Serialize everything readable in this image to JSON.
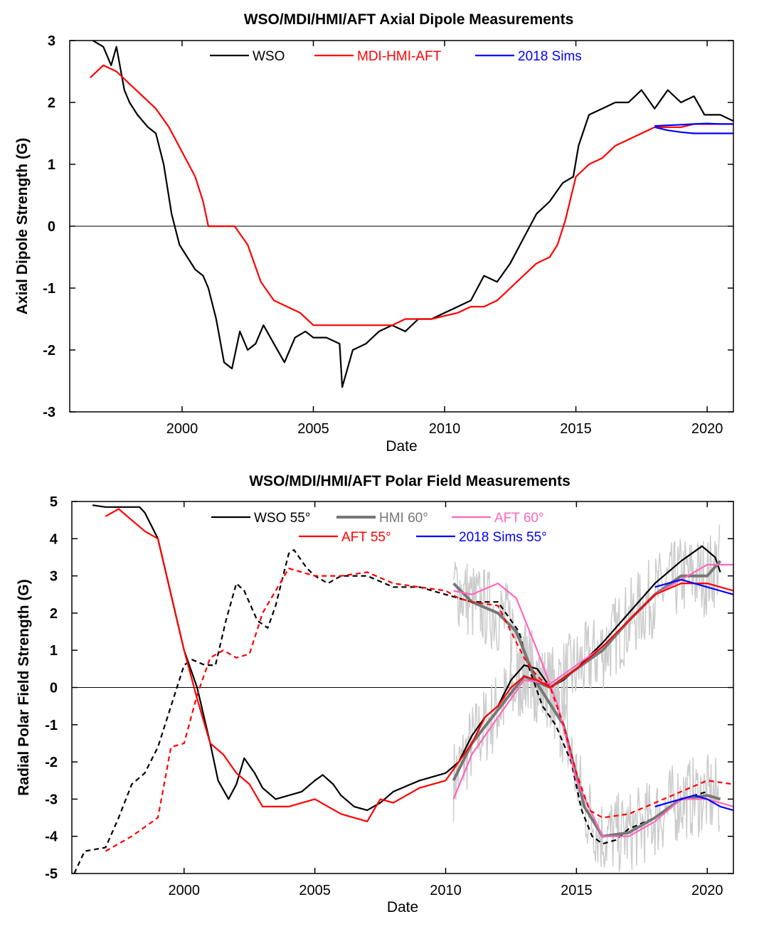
{
  "chart_data": [
    {
      "type": "line",
      "title": "WSO/MDI/HMI/AFT Axial Dipole Measurements",
      "xlabel": "Date",
      "ylabel": "Axial Dipole Strength (G)",
      "xlim": [
        1995.72,
        2021.0
      ],
      "ylim": [
        -3,
        3
      ],
      "xticks": [
        2000,
        2005,
        2010,
        2015,
        2020
      ],
      "yticks": [
        -3,
        -2,
        -1,
        0,
        1,
        2,
        3
      ],
      "legend": "top",
      "series": [
        {
          "name": "WSO",
          "color": "#000000",
          "legend": true,
          "x": [
            1996.6,
            1997.0,
            1997.3,
            1997.5,
            1997.8,
            1998.0,
            1998.3,
            1998.7,
            1999.0,
            1999.3,
            1999.6,
            1999.9,
            2000.2,
            2000.5,
            2000.8,
            2001.0,
            2001.3,
            2001.6,
            2001.9,
            2002.2,
            2002.5,
            2002.8,
            2003.1,
            2003.5,
            2003.9,
            2004.3,
            2004.7,
            2005.0,
            2005.5,
            2006.0,
            2006.1,
            2006.5,
            2007.0,
            2007.5,
            2008.0,
            2008.5,
            2009.0,
            2009.5,
            2010.0,
            2010.5,
            2011.0,
            2011.5,
            2012.0,
            2012.5,
            2013.0,
            2013.5,
            2014.0,
            2014.5,
            2014.9,
            2015.1,
            2015.5,
            2016.0,
            2016.5,
            2017.0,
            2017.5,
            2018.0,
            2018.5,
            2019.0,
            2019.5,
            2019.9,
            2020.5,
            2021.0
          ],
          "y": [
            3.0,
            2.9,
            2.6,
            2.9,
            2.2,
            2.0,
            1.8,
            1.6,
            1.5,
            1.0,
            0.2,
            -0.3,
            -0.5,
            -0.7,
            -0.8,
            -1.0,
            -1.5,
            -2.2,
            -2.3,
            -1.7,
            -2.0,
            -1.9,
            -1.6,
            -1.9,
            -2.2,
            -1.8,
            -1.7,
            -1.8,
            -1.8,
            -1.9,
            -2.6,
            -2.0,
            -1.9,
            -1.7,
            -1.6,
            -1.7,
            -1.5,
            -1.5,
            -1.4,
            -1.3,
            -1.2,
            -0.8,
            -0.9,
            -0.6,
            -0.2,
            0.2,
            0.4,
            0.7,
            0.8,
            1.3,
            1.8,
            1.9,
            2.0,
            2.0,
            2.2,
            1.9,
            2.2,
            2.0,
            2.1,
            1.8,
            1.8,
            1.7
          ]
        },
        {
          "name": "MDI-HMI-AFT",
          "color": "#ff0000",
          "legend": true,
          "x": [
            1996.5,
            1997.0,
            1997.5,
            1998.0,
            1998.5,
            1999.0,
            1999.5,
            2000.0,
            2000.5,
            2000.8,
            2001.0,
            2001.5,
            2002.0,
            2002.5,
            2003.0,
            2003.5,
            2004.0,
            2004.5,
            2005.0,
            2005.5,
            2006.0,
            2006.5,
            2007.0,
            2007.5,
            2008.0,
            2008.5,
            2009.0,
            2009.5,
            2010.0,
            2010.5,
            2011.0,
            2011.5,
            2012.0,
            2012.5,
            2013.0,
            2013.5,
            2014.0,
            2014.3,
            2014.6,
            2015.0,
            2015.5,
            2016.0,
            2016.5,
            2017.0,
            2017.5,
            2018.0,
            2018.5,
            2019.0,
            2019.5,
            2020.0,
            2020.5,
            2021.0
          ],
          "y": [
            2.4,
            2.6,
            2.5,
            2.3,
            2.1,
            1.9,
            1.6,
            1.2,
            0.8,
            0.4,
            0.0,
            0.0,
            0.0,
            -0.3,
            -0.9,
            -1.2,
            -1.3,
            -1.4,
            -1.6,
            -1.6,
            -1.6,
            -1.6,
            -1.6,
            -1.6,
            -1.6,
            -1.5,
            -1.5,
            -1.5,
            -1.45,
            -1.4,
            -1.3,
            -1.3,
            -1.2,
            -1.0,
            -0.8,
            -0.6,
            -0.5,
            -0.3,
            0.1,
            0.8,
            1.0,
            1.1,
            1.3,
            1.4,
            1.5,
            1.6,
            1.6,
            1.6,
            1.65,
            1.65,
            1.65,
            1.65
          ]
        },
        {
          "name": "2018 Sims",
          "color": "#0000ff",
          "legend": true,
          "x": [
            2018.0,
            2018.5,
            2019.0,
            2019.5,
            2020.0,
            2020.5,
            2021.0
          ],
          "y": [
            1.62,
            1.63,
            1.64,
            1.65,
            1.66,
            1.65,
            1.65
          ]
        },
        {
          "name": "2018 Sims",
          "color": "#0000ff",
          "legend": false,
          "x": [
            2018.0,
            2018.5,
            2019.0,
            2019.5,
            2020.0,
            2020.5,
            2021.0
          ],
          "y": [
            1.6,
            1.55,
            1.52,
            1.5,
            1.5,
            1.5,
            1.5
          ]
        }
      ]
    },
    {
      "type": "line",
      "title": "WSO/MDI/HMI/AFT Polar Field Measurements",
      "xlabel": "Date",
      "ylabel": "Radial Polar Field Strength (G)",
      "xlim": [
        1995.71,
        2021.0
      ],
      "ylim": [
        -5,
        5
      ],
      "xticks": [
        2000,
        2005,
        2010,
        2015,
        2020
      ],
      "yticks": [
        -5,
        -4,
        -3,
        -2,
        -1,
        0,
        1,
        2,
        3,
        4,
        5
      ],
      "legend": "top",
      "series": [
        {
          "name": "HMI 60° raw",
          "color": "#cccccc",
          "legend": false,
          "noisy": true,
          "x": [
            2010.3,
            2011,
            2012,
            2013,
            2014,
            2015,
            2016,
            2017,
            2018,
            2019,
            2020,
            2020.5
          ],
          "y": [
            -2.5,
            -1.5,
            -0.6,
            0.3,
            0.0,
            0.5,
            1.0,
            1.8,
            2.5,
            3.0,
            3.0,
            3.4
          ]
        },
        {
          "name": "HMI 60° raw",
          "color": "#cccccc",
          "legend": false,
          "noisy": true,
          "x": [
            2010.3,
            2011,
            2012,
            2012.7,
            2013.5,
            2014.5,
            2015.3,
            2016,
            2017,
            2018,
            2019,
            2020,
            2020.5
          ],
          "y": [
            2.8,
            2.3,
            2.0,
            1.5,
            0.1,
            -1.0,
            -3.2,
            -4.0,
            -3.9,
            -3.5,
            -3.0,
            -2.9,
            -3.0
          ]
        },
        {
          "name": "WSO 55°",
          "color": "#000000",
          "legend": true,
          "x": [
            1996.5,
            1997.0,
            1998.3,
            1998.5,
            1999.0,
            1999.5,
            2000.0,
            2000.5,
            2001.0,
            2001.3,
            2001.7,
            2002.0,
            2002.3,
            2002.7,
            2003.0,
            2003.5,
            2004.0,
            2004.5,
            2005.0,
            2005.3,
            2005.7,
            2006.0,
            2006.5,
            2007.0,
            2007.5,
            2008.0,
            2009.0,
            2010.0,
            2010.5,
            2011.0,
            2011.5,
            2012.0,
            2012.5,
            2013.0,
            2013.5,
            2014.0,
            2014.5,
            2015.0,
            2016.0,
            2017.0,
            2018.0,
            2019.0,
            2019.8,
            2020.3,
            2020.5
          ],
          "y": [
            4.9,
            4.85,
            4.85,
            4.7,
            4.0,
            2.5,
            1.0,
            0.0,
            -1.5,
            -2.5,
            -3.0,
            -2.6,
            -1.9,
            -2.3,
            -2.7,
            -3.0,
            -2.9,
            -2.8,
            -2.5,
            -2.35,
            -2.6,
            -2.9,
            -3.2,
            -3.3,
            -3.1,
            -2.8,
            -2.5,
            -2.3,
            -2.0,
            -1.3,
            -0.8,
            -0.5,
            0.2,
            0.6,
            0.5,
            0.0,
            0.2,
            0.5,
            1.2,
            2.0,
            2.8,
            3.4,
            3.8,
            3.5,
            3.1
          ]
        },
        {
          "name": "WSO 55°",
          "color": "#000000",
          "legend": false,
          "dash": true,
          "x": [
            1995.8,
            1996.2,
            1997.0,
            1997.5,
            1998.0,
            1998.5,
            1999.0,
            1999.5,
            2000.0,
            2000.3,
            2000.8,
            2001.2,
            2001.6,
            2002.0,
            2002.3,
            2002.8,
            2003.2,
            2003.5,
            2004.0,
            2004.2,
            2004.7,
            2005.0,
            2005.5,
            2006.0,
            2007.0,
            2008.0,
            2009.0,
            2010.0,
            2011.0,
            2012.0,
            2012.8,
            2013.2,
            2013.7,
            2014.2,
            2014.8,
            2015.2,
            2015.6,
            2016.0,
            2016.5,
            2017.0,
            2018.0,
            2019.0,
            2020.0
          ],
          "y": [
            -5.0,
            -4.4,
            -4.3,
            -3.5,
            -2.6,
            -2.3,
            -1.6,
            -0.5,
            0.6,
            0.75,
            0.6,
            0.6,
            1.8,
            2.8,
            2.6,
            1.8,
            1.6,
            2.2,
            3.6,
            3.7,
            3.2,
            3.0,
            2.8,
            3.0,
            3.0,
            2.7,
            2.7,
            2.5,
            2.3,
            2.3,
            1.5,
            0.5,
            -0.5,
            -1.0,
            -2.0,
            -3.3,
            -4.0,
            -4.2,
            -4.1,
            -3.8,
            -3.5,
            -3.0,
            -2.8
          ]
        },
        {
          "name": "HMI 60°",
          "color": "#777777",
          "legend": true,
          "thick": true,
          "x": [
            2010.3,
            2011,
            2012,
            2013,
            2014,
            2015,
            2016,
            2017,
            2018,
            2019,
            2020,
            2020.5
          ],
          "y": [
            -2.5,
            -1.5,
            -0.6,
            0.3,
            0.0,
            0.5,
            1.0,
            1.8,
            2.5,
            3.0,
            3.0,
            3.4
          ]
        },
        {
          "name": "HMI 60°",
          "color": "#777777",
          "legend": false,
          "thick": true,
          "x": [
            2010.3,
            2011,
            2012,
            2012.7,
            2013.5,
            2014.5,
            2015.3,
            2016,
            2017,
            2018,
            2019,
            2020,
            2020.5
          ],
          "y": [
            2.8,
            2.3,
            2.0,
            1.5,
            0.1,
            -1.0,
            -3.2,
            -4.0,
            -3.9,
            -3.5,
            -3.0,
            -2.9,
            -3.0
          ]
        },
        {
          "name": "AFT 60°",
          "color": "#ff66bb",
          "legend": true,
          "x": [
            2010.3,
            2011,
            2012,
            2013,
            2014,
            2015,
            2016,
            2017,
            2018,
            2019,
            2020,
            2021
          ],
          "y": [
            -3.0,
            -1.8,
            -0.8,
            0.2,
            0.1,
            0.6,
            1.1,
            1.8,
            2.5,
            2.9,
            3.3,
            3.3
          ]
        },
        {
          "name": "AFT 60°",
          "color": "#ff66bb",
          "legend": false,
          "x": [
            2010.3,
            2011,
            2012,
            2012.7,
            2013.5,
            2014.3,
            2015,
            2016,
            2017,
            2018,
            2019,
            2020,
            2021
          ],
          "y": [
            2.6,
            2.5,
            2.8,
            2.4,
            1.0,
            -0.5,
            -2.5,
            -4.0,
            -4.0,
            -3.6,
            -3.0,
            -3.0,
            -3.2
          ]
        },
        {
          "name": "AFT 55°",
          "color": "#ff0000",
          "legend": true,
          "x": [
            1997.0,
            1997.5,
            1998.0,
            1998.5,
            1999.0,
            1999.5,
            2000.0,
            2000.5,
            2001.0,
            2001.5,
            2002.0,
            2002.5,
            2003.0,
            2003.5,
            2004.0,
            2005.0,
            2006.0,
            2007.0,
            2007.5,
            2008.0,
            2009.0,
            2010.0,
            2010.5,
            2011.0,
            2011.5,
            2012.0,
            2012.5,
            2013.0,
            2013.5,
            2014.0,
            2015.0,
            2016.0,
            2017.0,
            2018.0,
            2019.0,
            2020.0,
            2021.0
          ],
          "y": [
            4.6,
            4.8,
            4.5,
            4.2,
            4.0,
            2.5,
            1.0,
            -0.3,
            -1.5,
            -1.8,
            -2.3,
            -2.6,
            -3.2,
            -3.2,
            -3.2,
            -3.0,
            -3.4,
            -3.6,
            -3.0,
            -3.1,
            -2.7,
            -2.5,
            -2.0,
            -1.5,
            -0.8,
            -0.5,
            0.0,
            0.3,
            0.2,
            0.0,
            0.5,
            1.1,
            1.8,
            2.5,
            2.8,
            2.8,
            2.6
          ]
        },
        {
          "name": "AFT 55°",
          "color": "#ff0000",
          "legend": false,
          "dash": true,
          "x": [
            1997.0,
            1998.0,
            1999.0,
            1999.5,
            2000.0,
            2000.5,
            2001.0,
            2001.5,
            2002.0,
            2002.5,
            2003.0,
            2004.0,
            2005.0,
            2006.0,
            2007.0,
            2008.0,
            2009.0,
            2010.0,
            2010.5,
            2011.0,
            2012.0,
            2012.5,
            2013.0,
            2013.5,
            2014.0,
            2014.5,
            2015.0,
            2015.5,
            2016.0,
            2017.0,
            2018.0,
            2019.0,
            2020.0,
            2021.0
          ],
          "y": [
            -4.4,
            -4.0,
            -3.5,
            -1.6,
            -1.5,
            -0.2,
            0.8,
            1.0,
            0.8,
            0.9,
            2.0,
            3.2,
            3.0,
            3.0,
            3.1,
            2.8,
            2.7,
            2.6,
            2.4,
            2.3,
            2.2,
            1.5,
            0.8,
            0.3,
            0.0,
            -1.0,
            -2.3,
            -3.3,
            -3.5,
            -3.4,
            -3.1,
            -2.8,
            -2.5,
            -2.6
          ]
        },
        {
          "name": "2018 Sims 55°",
          "color": "#0000ff",
          "legend": true,
          "x": [
            2018.0,
            2018.5,
            2019.0,
            2019.5,
            2020.0,
            2020.5,
            2021.0
          ],
          "y": [
            2.7,
            2.8,
            2.9,
            2.8,
            2.7,
            2.6,
            2.5
          ]
        },
        {
          "name": "2018 Sims 55°",
          "color": "#0000ff",
          "legend": false,
          "x": [
            2018.0,
            2018.5,
            2019.0,
            2019.5,
            2020.0,
            2020.5,
            2021.0
          ],
          "y": [
            -3.2,
            -3.1,
            -3.0,
            -2.9,
            -3.0,
            -3.2,
            -3.3
          ]
        }
      ]
    }
  ]
}
